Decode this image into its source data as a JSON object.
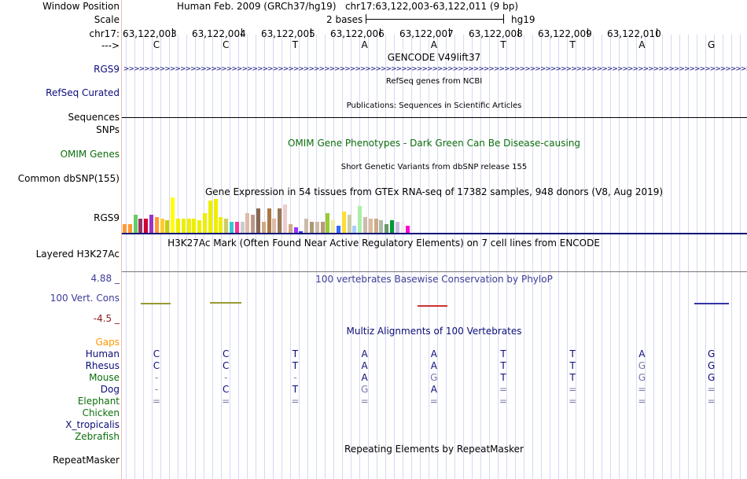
{
  "labels": {
    "window_position": "Window Position",
    "scale": "Scale",
    "chrom": "chr17:",
    "strand": "--->",
    "gencode_gene": "RGS9",
    "refseq": "RefSeq Curated",
    "sequences": "Sequences",
    "snps": "SNPs",
    "omim": "OMIM Genes",
    "common_dbsnp": "Common dbSNP(155)",
    "gtex_gene": "RGS9",
    "h3k27ac": "Layered H3K27Ac",
    "cons_max": "4.88 _",
    "cons": "100 Vert. Cons",
    "cons_min": "-4.5 _",
    "gaps": "Gaps",
    "species": [
      "Human",
      "Rhesus",
      "Mouse",
      "Dog",
      "Elephant",
      "Chicken",
      "X_tropicalis",
      "Zebrafish"
    ],
    "repeatmasker": "RepeatMasker"
  },
  "header": {
    "assembly": "Human Feb. 2009 (GRCh37/hg19)",
    "position": "chr17:63,122,003-63,122,011 (9 bp)",
    "scale_text": "2 bases",
    "scale_db": "hg19"
  },
  "ruler": {
    "coordinates": [
      "63,122,003",
      "63,122,004",
      "63,122,005",
      "63,122,006",
      "63,122,007",
      "63,122,008",
      "63,122,009",
      "63,122,010"
    ]
  },
  "sequence": [
    "C",
    "C",
    "T",
    "A",
    "A",
    "T",
    "T",
    "A",
    "G"
  ],
  "tracks": {
    "gencode_title": "GENCODE V49lift37",
    "refseq_title": "RefSeq genes from NCBI",
    "publications_title": "Publications: Sequences in Scientific Articles",
    "omim_title": "OMIM Gene Phenotypes - Dark Green Can Be Disease-causing",
    "dbsnp_title": "Short Genetic Variants from dbSNP release 155",
    "gtex_title": "Gene Expression in 54 tissues from GTEx RNA-seq of 17382 samples, 948 donors (V8, Aug 2019)",
    "h3k27ac_title": "H3K27Ac Mark (Often Found Near Active Regulatory Elements) on 7 cell lines from ENCODE",
    "phylop_title": "100 vertebrates Basewise Conservation by PhyloP",
    "multiz_title": "Multiz Alignments of 100 Vertebrates",
    "repeatmasker_title": "Repeating Elements by RepeatMasker"
  },
  "alignment": {
    "Human": [
      "C",
      "C",
      "T",
      "A",
      "A",
      "T",
      "T",
      "A",
      "G"
    ],
    "Rhesus": [
      "C",
      "C",
      "T",
      "A",
      "A",
      "T",
      "T",
      "G",
      "G"
    ],
    "Mouse": [
      "-",
      "-",
      "-",
      "A",
      "G",
      "T",
      "T",
      "G",
      "G"
    ],
    "Dog": [
      "-",
      "C",
      "T",
      "G",
      "A",
      "=",
      "=",
      "=",
      "="
    ],
    "Elephant": [
      "=",
      "=",
      "=",
      "=",
      "=",
      "=",
      "=",
      "=",
      "="
    ]
  },
  "gtex_values": [
    0.25,
    0.25,
    0.5,
    0.4,
    0.4,
    0.5,
    0.45,
    0.4,
    0.35,
    1.0,
    0.4,
    0.4,
    0.4,
    0.4,
    0.35,
    0.55,
    0.9,
    0.95,
    0.45,
    0.4,
    0.3,
    0.3,
    0.3,
    0.55,
    0.5,
    0.7,
    0.3,
    0.7,
    0.4,
    0.7,
    0.8,
    0.25,
    0.15,
    0.05,
    0.4,
    0.3,
    0.3,
    0.3,
    0.55,
    0.35,
    0.2,
    0.6,
    0.5,
    0.2,
    0.75,
    0.45,
    0.4,
    0.4,
    0.35,
    0.25,
    0.35,
    0.3,
    0.3,
    0.2
  ],
  "gtex_colors": [
    "#ff9933",
    "#ff9933",
    "#66cc66",
    "#993366",
    "#cc0033",
    "#9933cc",
    "#ff9933",
    "#ffcc33",
    "#cccc00",
    "#ffff00",
    "#eeee00",
    "#eeee00",
    "#eeee00",
    "#eeee00",
    "#eeee00",
    "#eeee00",
    "#eeee00",
    "#eeee00",
    "#eeee00",
    "#cccc66",
    "#33cccc",
    "#ff3399",
    "#cccccc",
    "#ddbbaa",
    "#bb9988",
    "#886655",
    "#ccaa88",
    "#aa7744",
    "#ddbbaa",
    "#997755",
    "#eecccc",
    "#ccaa88",
    "#9933ff",
    "#3333ff",
    "#ccbbaa",
    "#aa9977",
    "#ccbbaa",
    "#bb9977",
    "#99cc33",
    "#eeeeaa",
    "#3366ff",
    "#ffdd33",
    "#ccccaa",
    "#aaccff",
    "#aaeeaa",
    "#ccbbaa",
    "#ddbb99",
    "#ccaa88",
    "#aabbaa",
    "#669966",
    "#009933",
    "#ccbbdd",
    "#eeeeee",
    "#ff00cc"
  ],
  "colors": {
    "gencode": "#0c0c78",
    "omim": "#0c6e0c",
    "cons_pos": "#3c3c96",
    "cons_neg": "#8c1c1c",
    "gaps": "#ff9900",
    "species_default": "#0c0c78",
    "species_green": "#0c6e0c",
    "mismatch": "#7878a8"
  }
}
